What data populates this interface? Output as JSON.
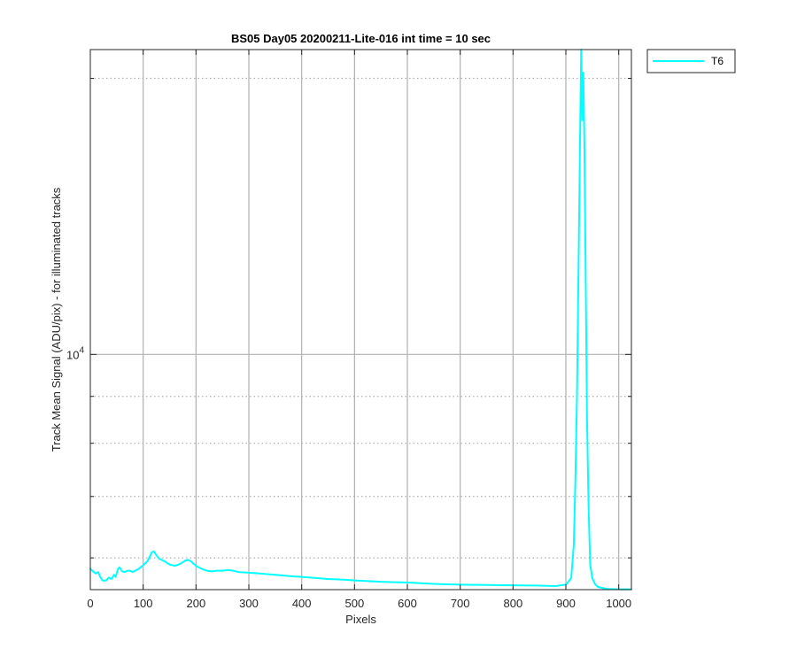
{
  "chart_data": {
    "type": "line",
    "title": "BS05 Day05 20200211-Lite-016 int time = 10 sec",
    "xlabel": "Pixels",
    "ylabel": "Track Mean Signal (ADU/pix) - for illuminated tracks",
    "xlim": [
      0,
      1024
    ],
    "ylim": [
      5540,
      21500
    ],
    "yscale": "log",
    "x_ticks": [
      0,
      100,
      200,
      300,
      400,
      500,
      600,
      700,
      800,
      900,
      1000
    ],
    "y_major_tick": {
      "value": 10000,
      "base": "10",
      "exponent": "4"
    },
    "y_minor_gridlines": [
      6000,
      7000,
      8000,
      9000,
      20000,
      30000
    ],
    "grid": true,
    "legend_position": "outside-top-right",
    "colors": {
      "series": "#00FFFF",
      "grid": "#b0b0b0",
      "axes": "#262626"
    },
    "series": [
      {
        "name": "T6",
        "color": "#00FFFF",
        "x": [
          0,
          5,
          10,
          15,
          18,
          22,
          25,
          30,
          35,
          40,
          45,
          48,
          52,
          55,
          60,
          65,
          70,
          75,
          80,
          90,
          100,
          108,
          112,
          116,
          120,
          125,
          130,
          140,
          150,
          160,
          170,
          180,
          185,
          190,
          200,
          210,
          220,
          230,
          240,
          250,
          260,
          270,
          280,
          300,
          320,
          350,
          380,
          400,
          450,
          480,
          500,
          550,
          600,
          650,
          700,
          750,
          800,
          850,
          880,
          900,
          910,
          915,
          918,
          921,
          924,
          927,
          929,
          931,
          933,
          935,
          937,
          940,
          943,
          946,
          950,
          955,
          960,
          970,
          980,
          1000,
          1024
        ],
        "y": [
          5840,
          5800,
          5770,
          5790,
          5730,
          5680,
          5665,
          5670,
          5710,
          5690,
          5750,
          5720,
          5830,
          5860,
          5800,
          5790,
          5810,
          5810,
          5790,
          5830,
          5890,
          5950,
          6010,
          6080,
          6100,
          6040,
          5990,
          5950,
          5900,
          5880,
          5910,
          5960,
          5970,
          5950,
          5880,
          5840,
          5810,
          5800,
          5810,
          5810,
          5820,
          5810,
          5790,
          5780,
          5770,
          5750,
          5730,
          5720,
          5690,
          5680,
          5670,
          5650,
          5640,
          5620,
          5610,
          5605,
          5600,
          5595,
          5590,
          5610,
          5700,
          6200,
          7300,
          9000,
          12500,
          17500,
          21500,
          18000,
          20300,
          17000,
          13000,
          8500,
          6800,
          5900,
          5700,
          5620,
          5580,
          5560,
          5550,
          5545,
          5545
        ]
      }
    ]
  }
}
